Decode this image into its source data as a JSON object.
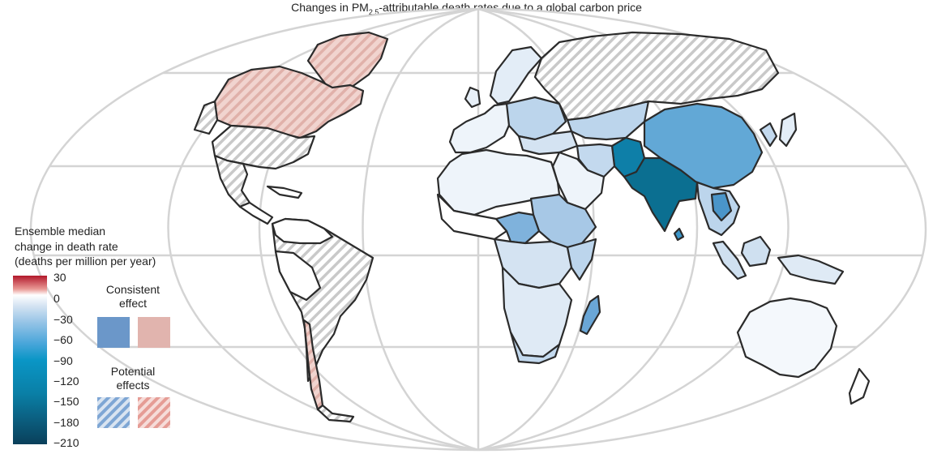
{
  "title": {
    "prefix": "Changes in PM",
    "subscript": "2.5",
    "suffix": "-attributable death rates due to a global carbon price"
  },
  "legend": {
    "title_line1": "Ensemble median",
    "title_line2": "change in death rate",
    "title_line3": "(deaths per million per year)",
    "ticks": [
      "30",
      "0",
      "−30",
      "−60",
      "−90",
      "−120",
      "−150",
      "−180",
      "−210"
    ],
    "consistent_line1": "Consistent",
    "consistent_line2": "effect",
    "potential_line1": "Potential",
    "potential_line2": "effects",
    "colors": {
      "consistent_negative": "#6b97c9",
      "consistent_positive": "#e1b4ae",
      "potential_negative": "#7ea6d4",
      "potential_positive": "#e59c95"
    }
  },
  "colors": {
    "border": "#2b2b2b",
    "graticule": "#d4d4d4",
    "hatch": "#c9c9c9"
  }
}
